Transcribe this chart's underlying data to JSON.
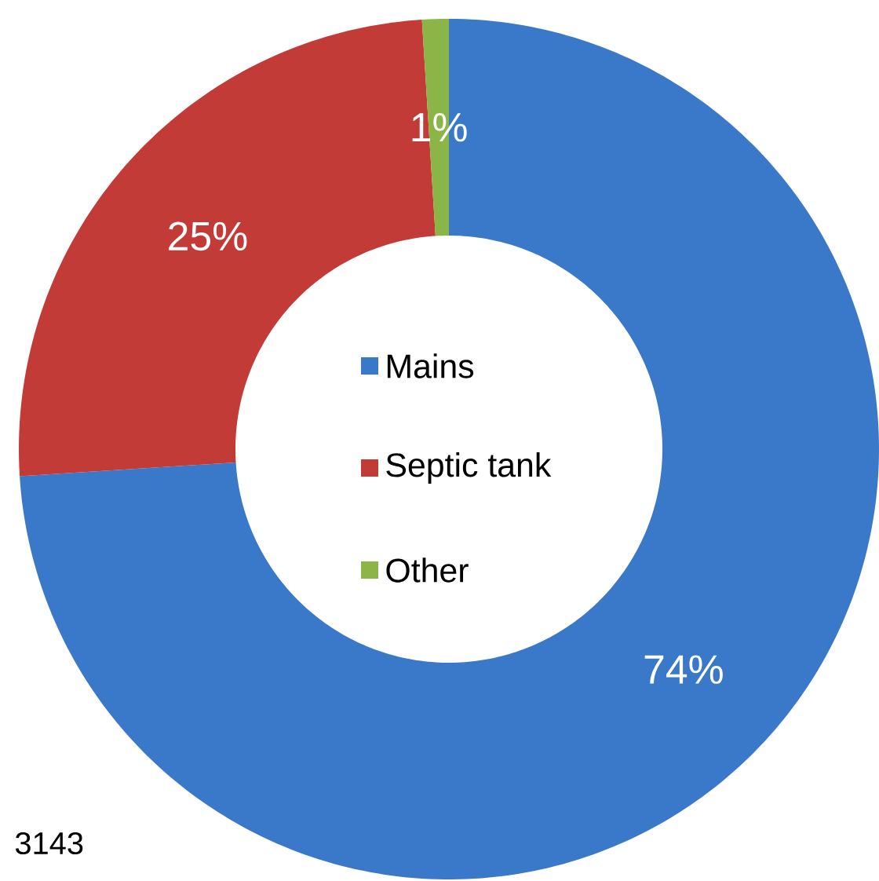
{
  "chart_data": {
    "type": "donut",
    "categories": [
      "Mains",
      "Septic tank",
      "Other"
    ],
    "values": [
      74,
      25,
      1
    ],
    "colors": [
      "#3a78c9",
      "#c23b37",
      "#8bb546"
    ],
    "value_labels": [
      "74%",
      "25%",
      "1%"
    ],
    "legend": "center",
    "annotations": [
      "3143"
    ]
  }
}
